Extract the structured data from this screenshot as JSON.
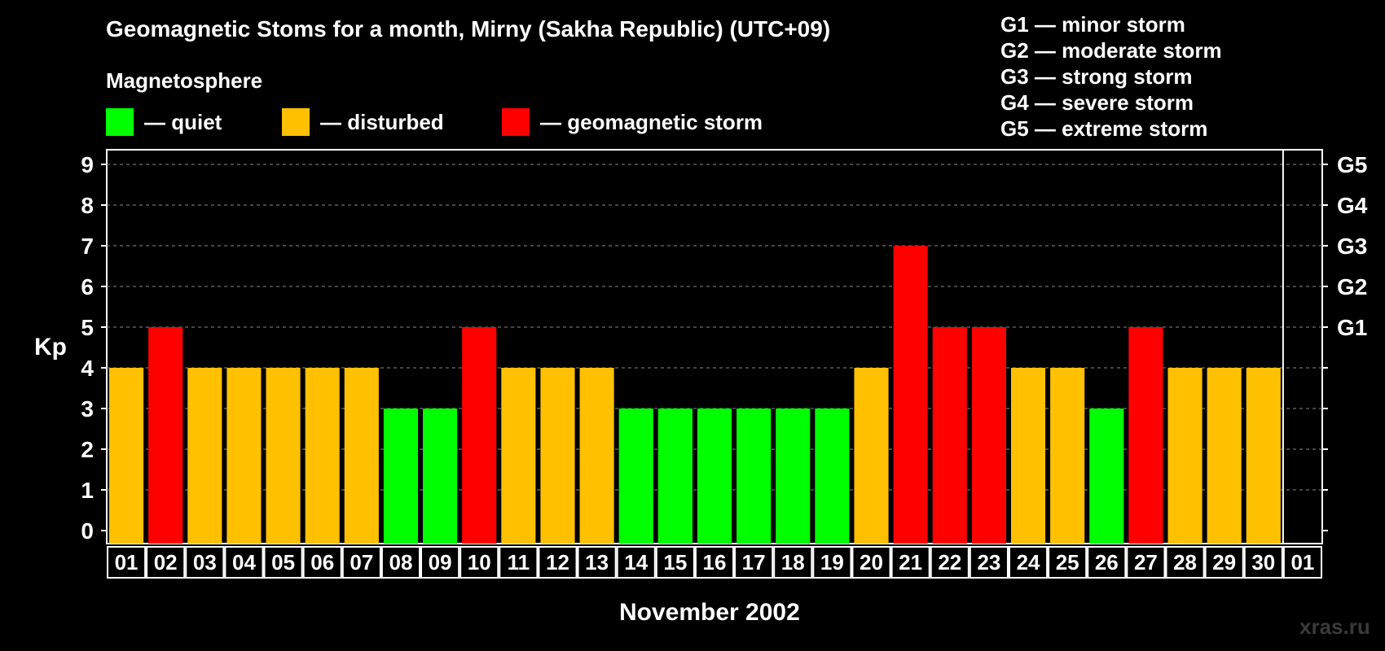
{
  "header": {
    "title": "Geomagnetic Stoms for a month, Mirny (Sakha Republic) (UTC+09)",
    "magnetosphere_label": "Magnetosphere"
  },
  "legend": [
    {
      "label": "— quiet",
      "color": "#00ff00"
    },
    {
      "label": "— disturbed",
      "color": "#ffc000"
    },
    {
      "label": "— geomagnetic storm",
      "color": "#ff0000"
    }
  ],
  "storm_scale": [
    {
      "label": "G1 — minor storm"
    },
    {
      "label": "G2 — moderate storm"
    },
    {
      "label": "G3 — strong storm"
    },
    {
      "label": "G4 — severe storm"
    },
    {
      "label": "G5 — extreme storm"
    }
  ],
  "watermark": "xras.ru",
  "chart_data": {
    "type": "bar",
    "title": "Geomagnetic Stoms for a month, Mirny (Sakha Republic) (UTC+09)",
    "ylabel": "Kp",
    "xlabel": "November 2002",
    "ylim": [
      0,
      9
    ],
    "yticks": [
      "0",
      "1",
      "2",
      "3",
      "4",
      "5",
      "6",
      "7",
      "8",
      "9"
    ],
    "right_axis_labels": [
      {
        "kp": 5,
        "label": "G1"
      },
      {
        "kp": 6,
        "label": "G2"
      },
      {
        "kp": 7,
        "label": "G3"
      },
      {
        "kp": 8,
        "label": "G4"
      },
      {
        "kp": 9,
        "label": "G5"
      }
    ],
    "categories": [
      "01",
      "02",
      "03",
      "04",
      "05",
      "06",
      "07",
      "08",
      "09",
      "10",
      "11",
      "12",
      "13",
      "14",
      "15",
      "16",
      "17",
      "18",
      "19",
      "20",
      "21",
      "22",
      "23",
      "24",
      "25",
      "26",
      "27",
      "28",
      "29",
      "30",
      "01"
    ],
    "values": [
      4,
      5,
      4,
      4,
      4,
      4,
      4,
      3,
      3,
      5,
      4,
      4,
      4,
      3,
      3,
      3,
      3,
      3,
      3,
      4,
      7,
      5,
      5,
      4,
      4,
      3,
      5,
      4,
      4,
      4,
      null
    ],
    "colors": {
      "quiet": "#00ff00",
      "disturbed": "#ffc000",
      "storm": "#ff0000"
    },
    "grid": true
  }
}
